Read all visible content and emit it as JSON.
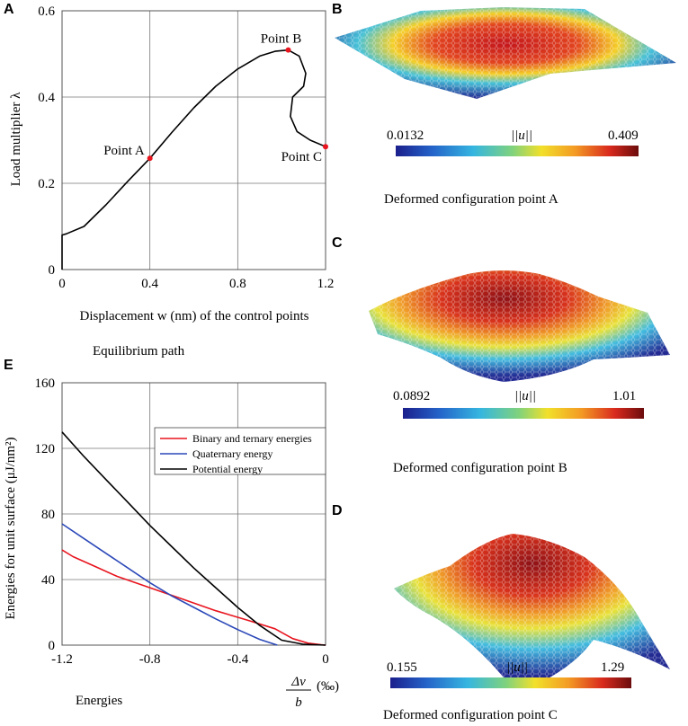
{
  "panels": {
    "a": {
      "letter": "A",
      "caption": "Equilibrium path"
    },
    "b": {
      "letter": "B",
      "caption": "Deformed configuration point A",
      "cbar_min": "0.0132",
      "cbar_max": "0.409",
      "cbar_title": "||u||"
    },
    "c": {
      "letter": "C",
      "caption": "Deformed configuration point B",
      "cbar_min": "0.0892",
      "cbar_max": "1.01",
      "cbar_title": "||u||"
    },
    "d": {
      "letter": "D",
      "caption": "Deformed configuration point C",
      "cbar_min": "0.155",
      "cbar_max": "1.29",
      "cbar_title": "||u||"
    },
    "e": {
      "letter": "E",
      "caption": "Energies"
    }
  },
  "chart_data": [
    {
      "type": "line",
      "panel": "A",
      "title": "Equilibrium path",
      "xlabel": "Displacement w (nm) of the control points",
      "ylabel": "Load multiplier λ",
      "xlim": [
        0,
        1.2
      ],
      "ylim": [
        0,
        0.6
      ],
      "xticks": [
        "0",
        "0.4",
        "0.8",
        "1.2"
      ],
      "yticks": [
        "0",
        "0.2",
        "0.4",
        "0.6"
      ],
      "grid": true,
      "series": [
        {
          "name": "equilibrium path",
          "color": "#000000",
          "x": [
            0,
            0,
            0.02,
            0.1,
            0.2,
            0.3,
            0.4,
            0.5,
            0.6,
            0.7,
            0.8,
            0.9,
            0.97,
            1.03,
            1.08,
            1.11,
            1.1,
            1.05,
            1.04,
            1.07,
            1.13,
            1.2
          ],
          "y": [
            0,
            0.08,
            0.083,
            0.1,
            0.15,
            0.205,
            0.258,
            0.318,
            0.375,
            0.425,
            0.465,
            0.495,
            0.506,
            0.509,
            0.495,
            0.455,
            0.425,
            0.4,
            0.355,
            0.32,
            0.3,
            0.285
          ]
        }
      ],
      "points": [
        {
          "label": "Point A",
          "x": 0.4,
          "y": 0.258
        },
        {
          "label": "Point B",
          "x": 1.03,
          "y": 0.509
        },
        {
          "label": "Point C",
          "x": 1.2,
          "y": 0.285
        }
      ]
    },
    {
      "type": "line",
      "panel": "E",
      "title": "Energies",
      "xlabel_num": "Δv",
      "xlabel_den": "b",
      "xlabel_unit": "(‰)",
      "ylabel": "Energies for unit surface (μJ/nm²)",
      "xlim": [
        -1.2,
        0
      ],
      "ylim": [
        0,
        160
      ],
      "xticks": [
        "-1.2",
        "-0.8",
        "-0.4",
        "0"
      ],
      "yticks": [
        "0",
        "40",
        "80",
        "120",
        "160"
      ],
      "grid": true,
      "legend_position": "top-right",
      "series": [
        {
          "name": "Binary and ternary energies",
          "color": "#e8141e",
          "x": [
            -1.2,
            -1.15,
            -1.05,
            -0.95,
            -0.8,
            -0.65,
            -0.5,
            -0.35,
            -0.23,
            -0.15,
            -0.08,
            -0.02,
            0
          ],
          "y": [
            58,
            54,
            48,
            42,
            35,
            28,
            21,
            15,
            10,
            4,
            1.2,
            0.2,
            0
          ]
        },
        {
          "name": "Quaternary energy",
          "color": "#2b48b8",
          "x": [
            -1.2,
            -1.1,
            -1.0,
            -0.9,
            -0.8,
            -0.7,
            -0.6,
            -0.5,
            -0.4,
            -0.3,
            -0.22
          ],
          "y": [
            74,
            65,
            56,
            47,
            38,
            30,
            23,
            16,
            9.5,
            3.5,
            0
          ]
        },
        {
          "name": "Potential energy",
          "color": "#000000",
          "x": [
            -1.2,
            -1.1,
            -1.0,
            -0.9,
            -0.8,
            -0.7,
            -0.6,
            -0.5,
            -0.4,
            -0.3,
            -0.2,
            -0.1,
            0
          ],
          "y": [
            130,
            115,
            101,
            87,
            73,
            60,
            47,
            35,
            23,
            12,
            3,
            0.5,
            0
          ]
        }
      ]
    }
  ]
}
